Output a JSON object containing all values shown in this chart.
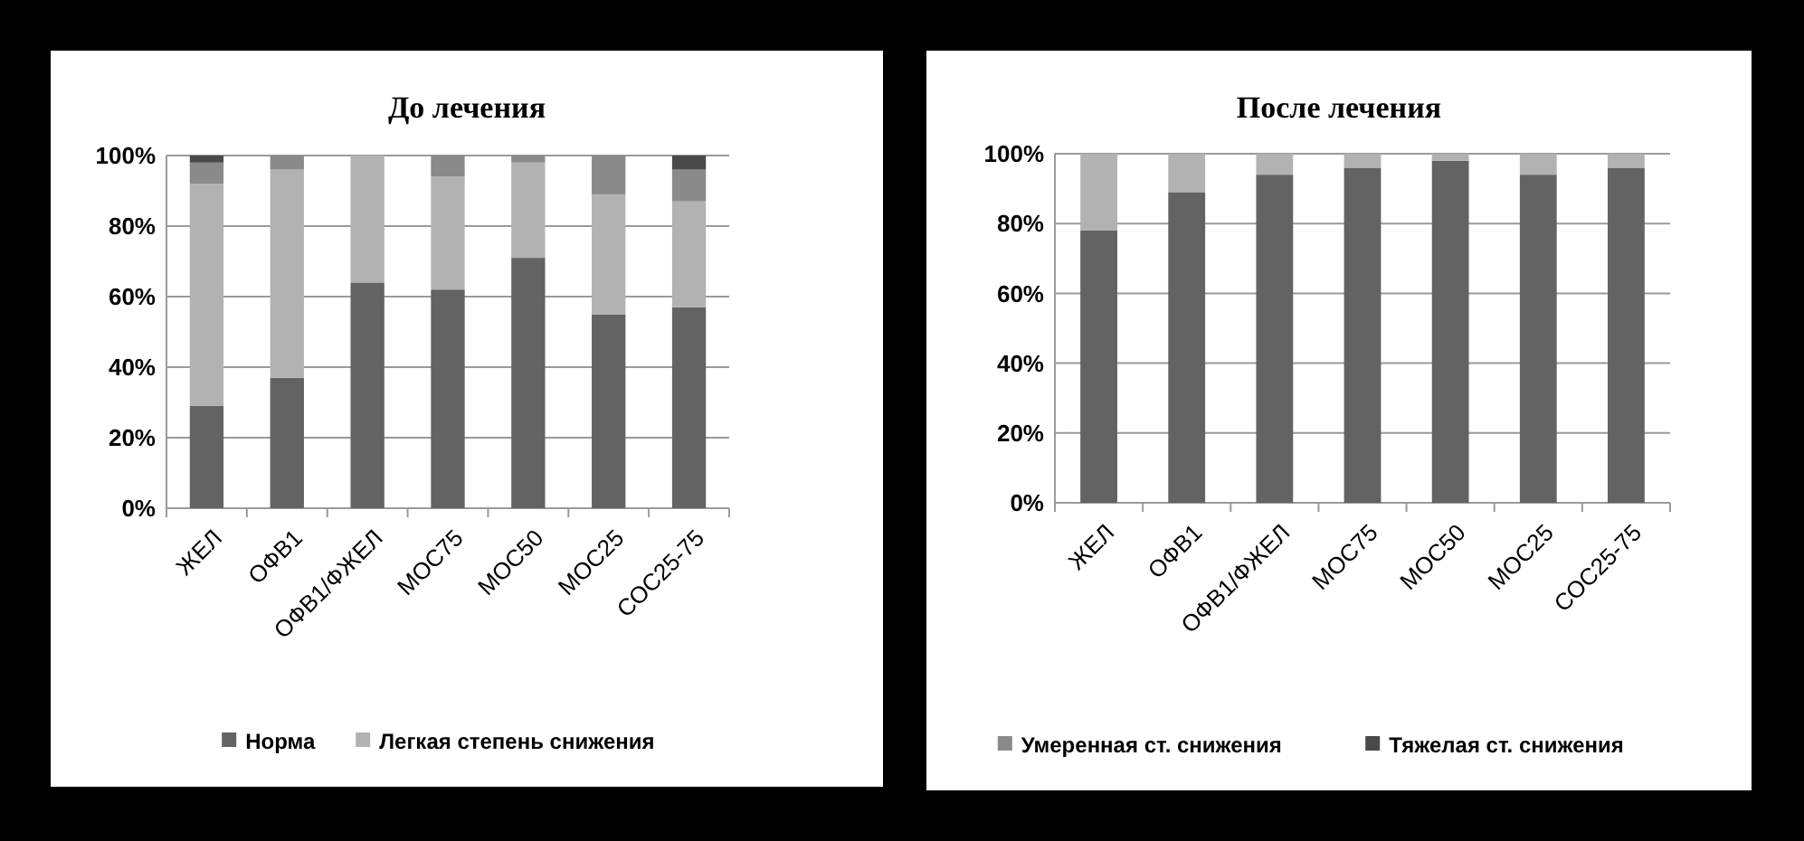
{
  "chart_data": [
    {
      "type": "bar",
      "title": "До лечения",
      "stacked": true,
      "grid": "y",
      "legend": "bottom",
      "categories": [
        "ЖЕЛ",
        "ОФВ1",
        "ОФВ1/ФЖЕЛ",
        "МОС75",
        "МОС50",
        "МОС25",
        "СОС25-75"
      ],
      "series": [
        {
          "name": "Норма",
          "color": "#636363",
          "values": [
            29,
            37,
            64,
            62,
            71,
            55,
            57
          ]
        },
        {
          "name": "Легкая степень снижения",
          "color": "#b2b2b2",
          "values": [
            63,
            59,
            36,
            32,
            27,
            34,
            30
          ]
        },
        {
          "color": "#8a8a8a",
          "values": [
            6,
            4,
            0,
            6,
            2,
            11,
            9
          ]
        },
        {
          "color": "#4a4a4a",
          "values": [
            2,
            0,
            0,
            0,
            0,
            0,
            4
          ]
        }
      ],
      "ylim": [
        0,
        100
      ],
      "yticks": [
        {
          "value": 0,
          "label": "0%"
        },
        {
          "value": 20,
          "label": "20%"
        },
        {
          "value": 40,
          "label": "40%"
        },
        {
          "value": 60,
          "label": "60%"
        },
        {
          "value": 80,
          "label": "80%"
        },
        {
          "value": 100,
          "label": "100%"
        }
      ]
    },
    {
      "type": "bar",
      "title": "После лечения",
      "stacked": true,
      "grid": "y",
      "legend": "bottom",
      "categories": [
        "ЖЕЛ",
        "ОФВ1",
        "ОФВ1/ФЖЕЛ",
        "МОС75",
        "МОС50",
        "МОС25",
        "СОС25-75"
      ],
      "series": [
        {
          "color": "#636363",
          "values": [
            78,
            89,
            94,
            96,
            98,
            94,
            96
          ]
        },
        {
          "color": "#b2b2b2",
          "values": [
            22,
            11,
            6,
            4,
            2,
            6,
            4
          ]
        },
        {
          "name": "Умеренная ст. снижения",
          "color": "#8a8a8a",
          "values": [
            0,
            0,
            0,
            0,
            0,
            0,
            0
          ]
        },
        {
          "name": "Тяжелая ст. снижения",
          "color": "#4a4a4a",
          "values": [
            0,
            0,
            0,
            0,
            0,
            0,
            0
          ]
        }
      ],
      "ylim": [
        0,
        100
      ],
      "yticks": [
        {
          "value": 0,
          "label": "0%"
        },
        {
          "value": 20,
          "label": "20%"
        },
        {
          "value": 40,
          "label": "40%"
        },
        {
          "value": 60,
          "label": "60%"
        },
        {
          "value": 80,
          "label": "80%"
        },
        {
          "value": 100,
          "label": "100%"
        }
      ]
    }
  ]
}
